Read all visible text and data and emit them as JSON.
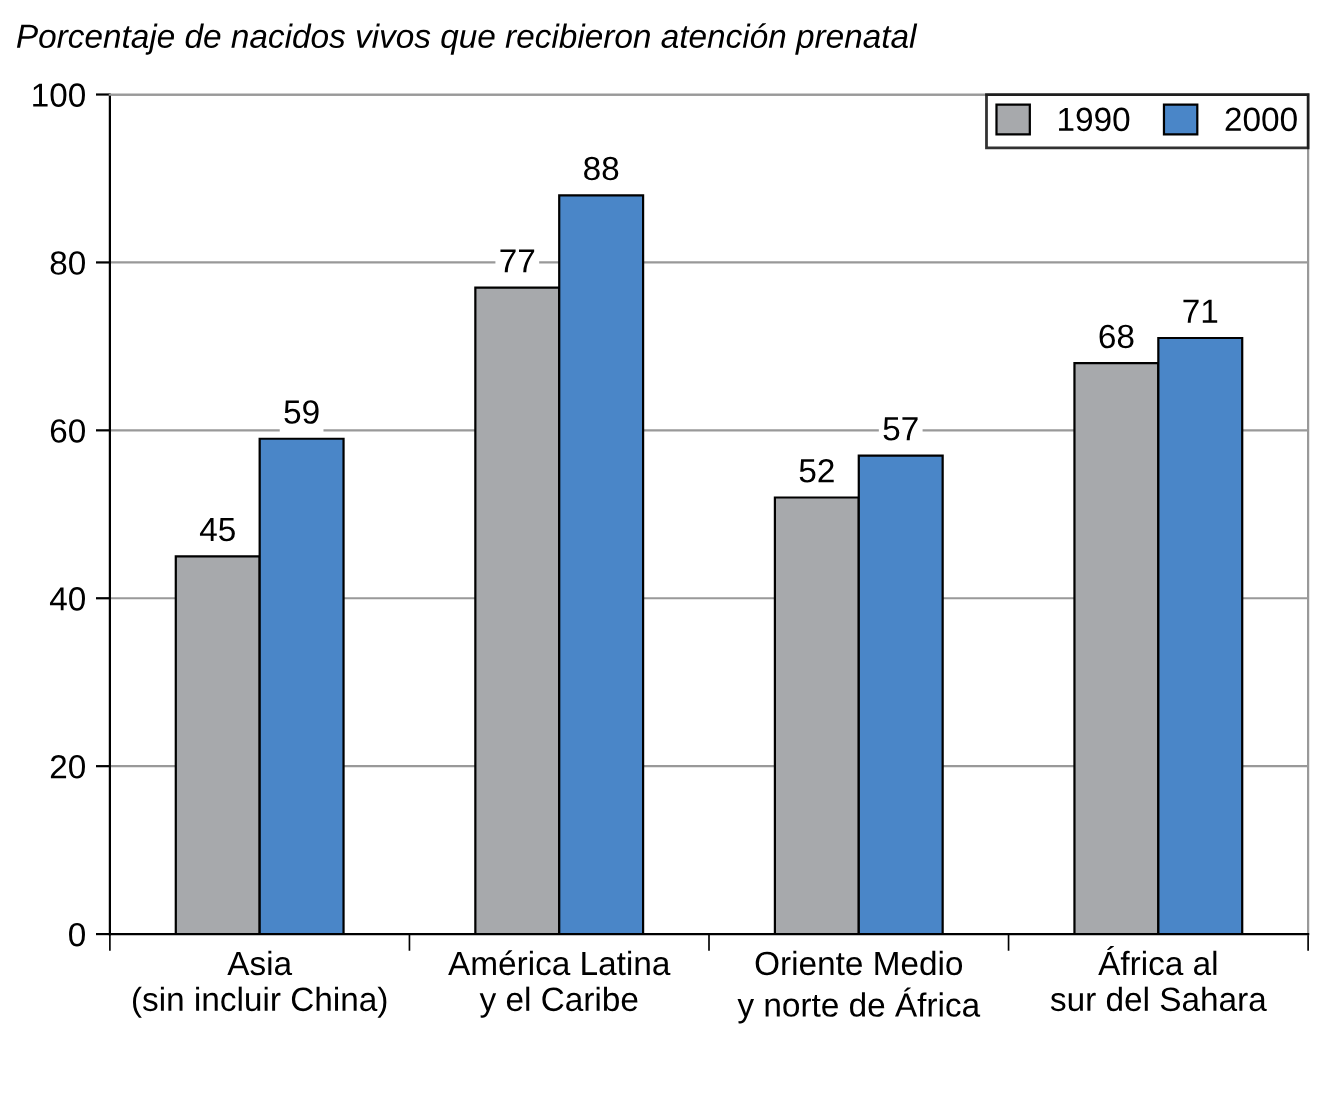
{
  "chart_data": {
    "type": "bar",
    "title": "Porcentaje de nacidos vivos que recibieron atención prenatal",
    "categories": [
      "Asia\n(sin incluir China)",
      "América Latina\ny el Caribe",
      "Oriente Medio\ny norte de África",
      "África al\nsur del Sahara"
    ],
    "series": [
      {
        "name": "1990",
        "color": "#a7a9ac",
        "values": [
          45,
          77,
          52,
          68
        ]
      },
      {
        "name": "2000",
        "color": "#4a86c8",
        "values": [
          59,
          88,
          57,
          71
        ]
      }
    ],
    "ylim": [
      0,
      100
    ],
    "yticks": [
      0,
      20,
      40,
      60,
      80,
      100
    ],
    "grid": "y",
    "legend": "top right",
    "data_labels": true
  }
}
